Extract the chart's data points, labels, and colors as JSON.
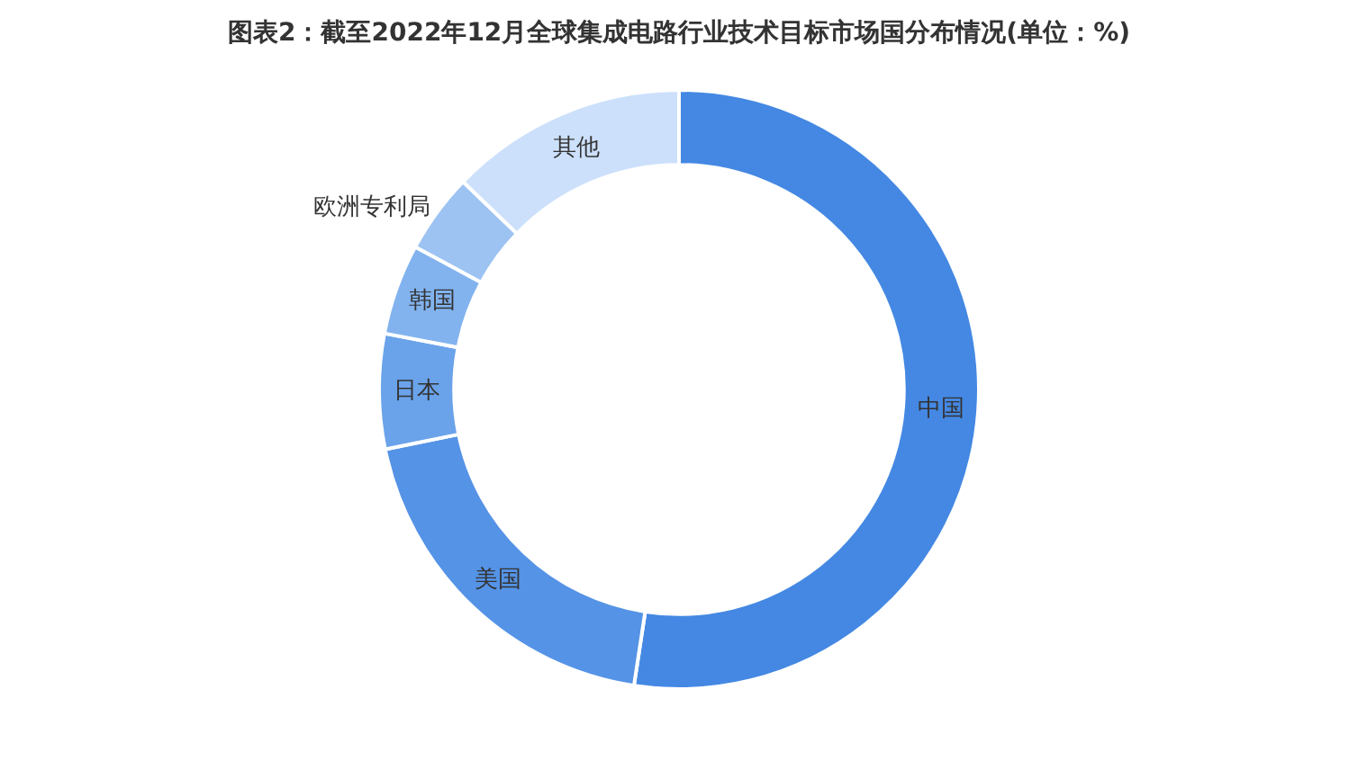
{
  "chart_data": {
    "type": "donut",
    "title": "图表2：截至2022年12月全球集成电路行业技术目标市场国分布情况(单位：%)",
    "categories": [
      "中国",
      "美国",
      "日本",
      "韩国",
      "欧洲专利局",
      "其他"
    ],
    "values": [
      52.4,
      19.4,
      6.2,
      4.9,
      4.3,
      12.8
    ],
    "colors": [
      "#4488e3",
      "#5593e6",
      "#6aa3ea",
      "#82b3ee",
      "#9dc3f2",
      "#cce0fb"
    ],
    "legend": false
  }
}
